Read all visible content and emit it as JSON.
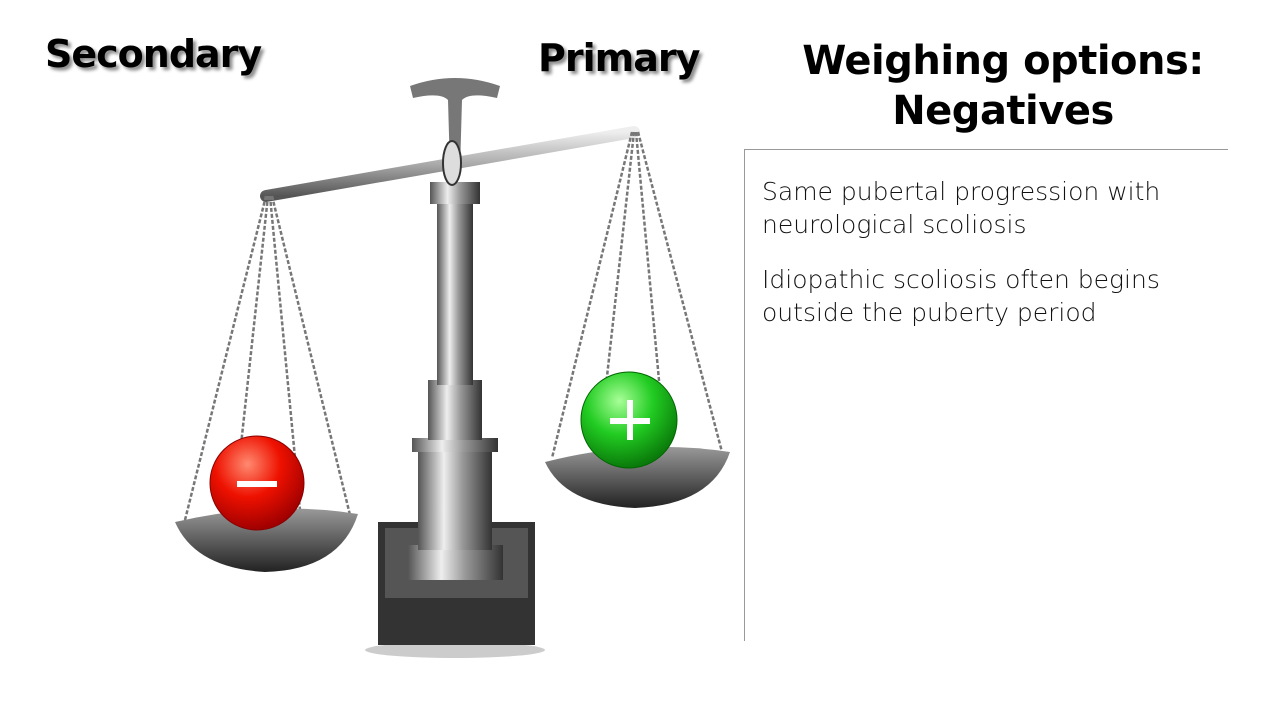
{
  "labels": {
    "secondary": "Secondary",
    "primary": "Primary"
  },
  "title": {
    "line1": "Weighing options:",
    "line2": "Negatives"
  },
  "points": [
    "Same pubertal progression with neurological scoliosis",
    "Idiopathic scoliosis often begins outside the puberty period"
  ],
  "balls": {
    "minus": {
      "symbol": "−",
      "color": "#e00000"
    },
    "plus": {
      "symbol": "+",
      "color": "#1cc01c"
    }
  }
}
